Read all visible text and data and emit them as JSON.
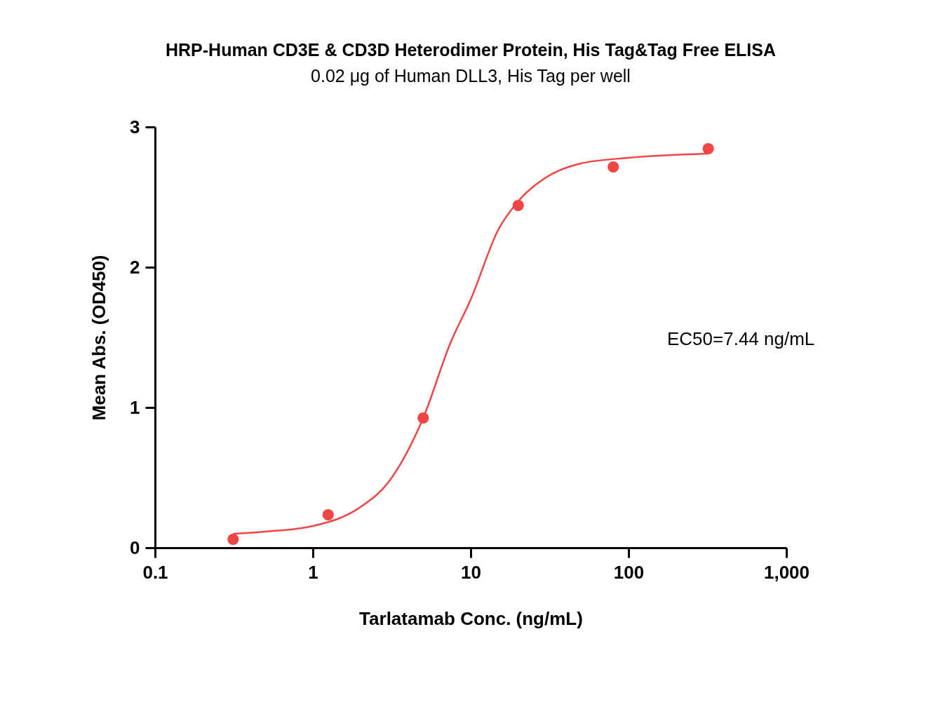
{
  "chart_data": {
    "type": "scatter",
    "title": "HRP-Human CD3E & CD3D Heterodimer Protein, His Tag&Tag Free ELISA",
    "subtitle": "0.02 μg of Human DLL3, His Tag per well",
    "xlabel": "Tarlatamab Conc. (ng/mL)",
    "ylabel": "Mean Abs. (OD450)",
    "log": "x",
    "xlim": [
      0.1,
      1000
    ],
    "xticks": [
      0.1,
      1,
      10,
      100,
      {
        "value": 1000,
        "label": "1,000"
      }
    ],
    "ylim": [
      0,
      3
    ],
    "yticks": [
      0,
      1,
      2,
      3
    ],
    "grid": false,
    "annotations": [
      "EC50=7.44 ng/mL"
    ],
    "series": [
      {
        "type": "line",
        "color": "#f04545",
        "marker": "none",
        "line_style": "solid",
        "x": [
          0.3125,
          0.5,
          1,
          2,
          3,
          5,
          7.44,
          10,
          15,
          20,
          30,
          50,
          100,
          320
        ],
        "values": [
          0.1,
          0.115,
          0.155,
          0.29,
          0.465,
          0.925,
          1.46,
          1.77,
          2.27,
          2.47,
          2.64,
          2.74,
          2.78,
          2.81
        ]
      },
      {
        "color": "#f04545",
        "marker": "circle",
        "x": [
          0.3125,
          1.25,
          5,
          20,
          80,
          320
        ],
        "values": [
          0.06,
          0.235,
          0.925,
          2.44,
          2.715,
          2.845
        ]
      }
    ]
  }
}
